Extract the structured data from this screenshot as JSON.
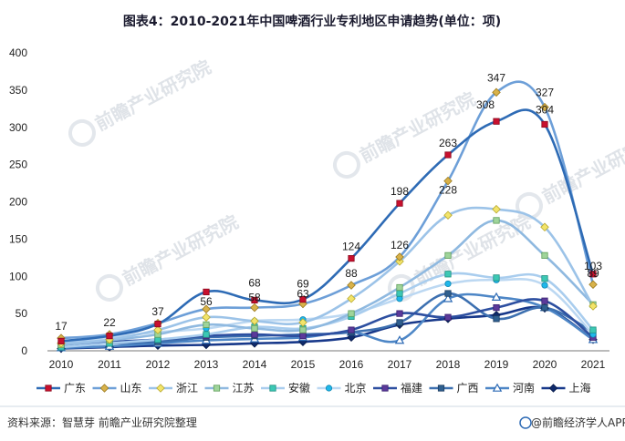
{
  "header": {
    "title": "图表4：2010-2021年中国啤酒行业专利地区申请趋势(单位：项)"
  },
  "watermark": {
    "brand": "前瞻产业研究院"
  },
  "footer": {
    "source": "资料来源：智慧芽 前瞻产业研究院整理",
    "app": "@前瞻经济学人APP"
  },
  "chart_data": {
    "type": "line",
    "categories": [
      "2010",
      "2011",
      "2012",
      "2013",
      "2014",
      "2015",
      "2016",
      "2017",
      "2018",
      "2019",
      "2020",
      "2021"
    ],
    "ylim": [
      0,
      400
    ],
    "yticks": [
      0,
      50,
      100,
      150,
      200,
      250,
      300,
      350,
      400
    ],
    "grid": false,
    "legend_position": "bottom",
    "series": [
      {
        "name": "广东",
        "color": "#2e6bb5",
        "marker": "square-red",
        "values": [
          13,
          20,
          36,
          79,
          68,
          69,
          124,
          198,
          263,
          308,
          304,
          103
        ],
        "labels": [
          "",
          "",
          "",
          "",
          "68",
          "69",
          "124",
          "198",
          "263",
          "308",
          "304",
          "103"
        ]
      },
      {
        "name": "山东",
        "color": "#6d9fd8",
        "marker": "diamond-gold",
        "values": [
          17,
          22,
          37,
          56,
          58,
          63,
          88,
          126,
          228,
          347,
          327,
          89
        ],
        "labels": [
          "17",
          "22",
          "37",
          "56",
          "58",
          "63",
          "88",
          "126",
          "228",
          "347",
          "327",
          "89"
        ]
      },
      {
        "name": "浙江",
        "color": "#9cc3e8",
        "marker": "diamond-yellow",
        "values": [
          10,
          15,
          28,
          45,
          40,
          38,
          70,
          120,
          182,
          190,
          166,
          60
        ]
      },
      {
        "name": "江苏",
        "color": "#8fb9e0",
        "marker": "square-green",
        "values": [
          8,
          14,
          22,
          35,
          30,
          28,
          50,
          85,
          128,
          175,
          128,
          62
        ]
      },
      {
        "name": "安徽",
        "color": "#a9cdee",
        "marker": "square-teal",
        "values": [
          5,
          10,
          15,
          22,
          32,
          30,
          46,
          77,
          103,
          98,
          97,
          28
        ]
      },
      {
        "name": "北京",
        "color": "#bcd8f2",
        "marker": "circle-cyan",
        "values": [
          12,
          18,
          25,
          30,
          40,
          42,
          50,
          70,
          90,
          95,
          88,
          22
        ]
      },
      {
        "name": "福建",
        "color": "#2d4fa0",
        "marker": "square-purple",
        "values": [
          8,
          12,
          15,
          20,
          22,
          20,
          28,
          50,
          45,
          58,
          67,
          18
        ]
      },
      {
        "name": "广西",
        "color": "#3d70b0",
        "marker": "square-blue",
        "values": [
          7,
          10,
          12,
          18,
          20,
          22,
          25,
          38,
          77,
          43,
          58,
          25
        ]
      },
      {
        "name": "河南",
        "color": "#4d86c6",
        "marker": "triangle-white",
        "values": [
          4,
          6,
          10,
          14,
          16,
          18,
          25,
          14,
          70,
          72,
          58,
          15
        ]
      },
      {
        "name": "上海",
        "color": "#17388a",
        "marker": "diamond-navy",
        "values": [
          3,
          5,
          7,
          8,
          10,
          12,
          18,
          35,
          43,
          48,
          57,
          15
        ]
      }
    ]
  }
}
